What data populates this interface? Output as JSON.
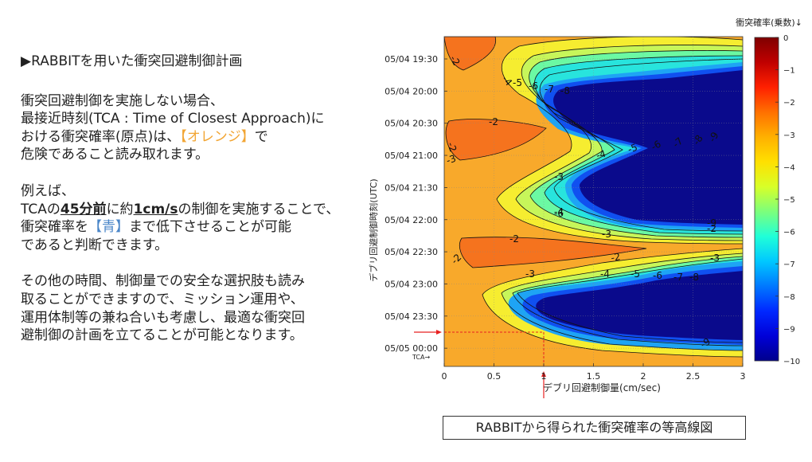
{
  "slide": {
    "heading": "▶RABBITを用いた衝突回避制御計画",
    "para1": {
      "line1": "衝突回避制御を実施しない場合、",
      "line2": "最接近時刻(TCA : Time of Closest Approach)に",
      "line3_pre": "おける衝突確率(原点)は、",
      "line3_orange": "【オレンジ】",
      "line3_post": "で",
      "line4": "危険であること読み取れます。"
    },
    "para2": {
      "line1": "例えば、",
      "line2_a": "TCAの",
      "line2_b": "45分前",
      "line2_c": "に約",
      "line2_d": "1cm/s",
      "line2_e": "の制御を実施することで、",
      "line3_pre": "衝突確率を",
      "line3_blue": "【青】",
      "line3_post": "まで低下させることが可能",
      "line4": "であると判断できます。"
    },
    "para3": {
      "line1": "その他の時間、制御量での安全な選択肢も読み",
      "line2": "取ることができますので、ミッション運用や、",
      "line3": "運用体制等の兼ね合いも考慮し、最適な衝突回",
      "line4": "避制御の計画を立てることが可能となります。"
    },
    "caption": "RABBITから得られた衝突確率の等高線図"
  },
  "chart_data": {
    "type": "contour",
    "title": "",
    "xlabel": "デブリ回避制御量(cm/sec)",
    "ylabel": "デブリ回避制御時刻(UTC)",
    "colorbar_label": "衝突確率(乗数)↓",
    "xlim": [
      0,
      3
    ],
    "x_ticks": [
      "0",
      "0.5",
      "1",
      "1.5",
      "2",
      "2.5",
      "3"
    ],
    "y_ticks": [
      "05/04 19:30",
      "05/04 20:00",
      "05/04 20:30",
      "05/04 21:00",
      "05/04 21:30",
      "05/04 22:00",
      "05/04 22:30",
      "05/04 23:00",
      "05/04 23:30",
      "05/05 00:00"
    ],
    "y_ticks_note": "TCA→",
    "colorbar_range": [
      -10,
      0
    ],
    "colorbar_ticks": [
      "0",
      "−1",
      "−2",
      "−3",
      "−4",
      "−5",
      "−6",
      "−7",
      "−8",
      "−9",
      "−10"
    ],
    "colorbar_colors": [
      "#7f0000",
      "#c00000",
      "#ff2000",
      "#ff7000",
      "#ffb000",
      "#ffe000",
      "#d8ff28",
      "#7cff7c",
      "#20ffd8",
      "#00c8ff",
      "#0078ff",
      "#0028ff",
      "#0000d8",
      "#00008c"
    ],
    "level_fills": {
      "-2": "#f5731e",
      "-3": "#f8a92b",
      "-4": "#f6ed30",
      "-5": "#c7f65a",
      "-6": "#6bf9a3",
      "-7": "#28e4dd",
      "-8": "#1ea4f4",
      "-9": "#1050f0",
      "-10": "#0a0a8c"
    },
    "background_fill": "#f8a92b",
    "contour_labels": [
      "-2",
      "-2",
      "-2",
      "-2",
      "-2",
      "-2",
      "-2",
      "-3",
      "-3",
      "-3",
      "-3",
      "-3",
      "-4",
      "-4",
      "-4",
      "-4",
      "-5",
      "-5",
      "-5",
      "-6",
      "-6",
      "-6",
      "-6",
      "-7",
      "-7",
      "-7",
      "-8",
      "-8",
      "-8",
      "-9",
      "-9",
      "-9"
    ],
    "annotation": {
      "description": "Example: ~1 cm/s maneuver applied 45 minutes before TCA",
      "x": 1.0,
      "y": "05/04 23:45",
      "color": "#e82020"
    }
  }
}
